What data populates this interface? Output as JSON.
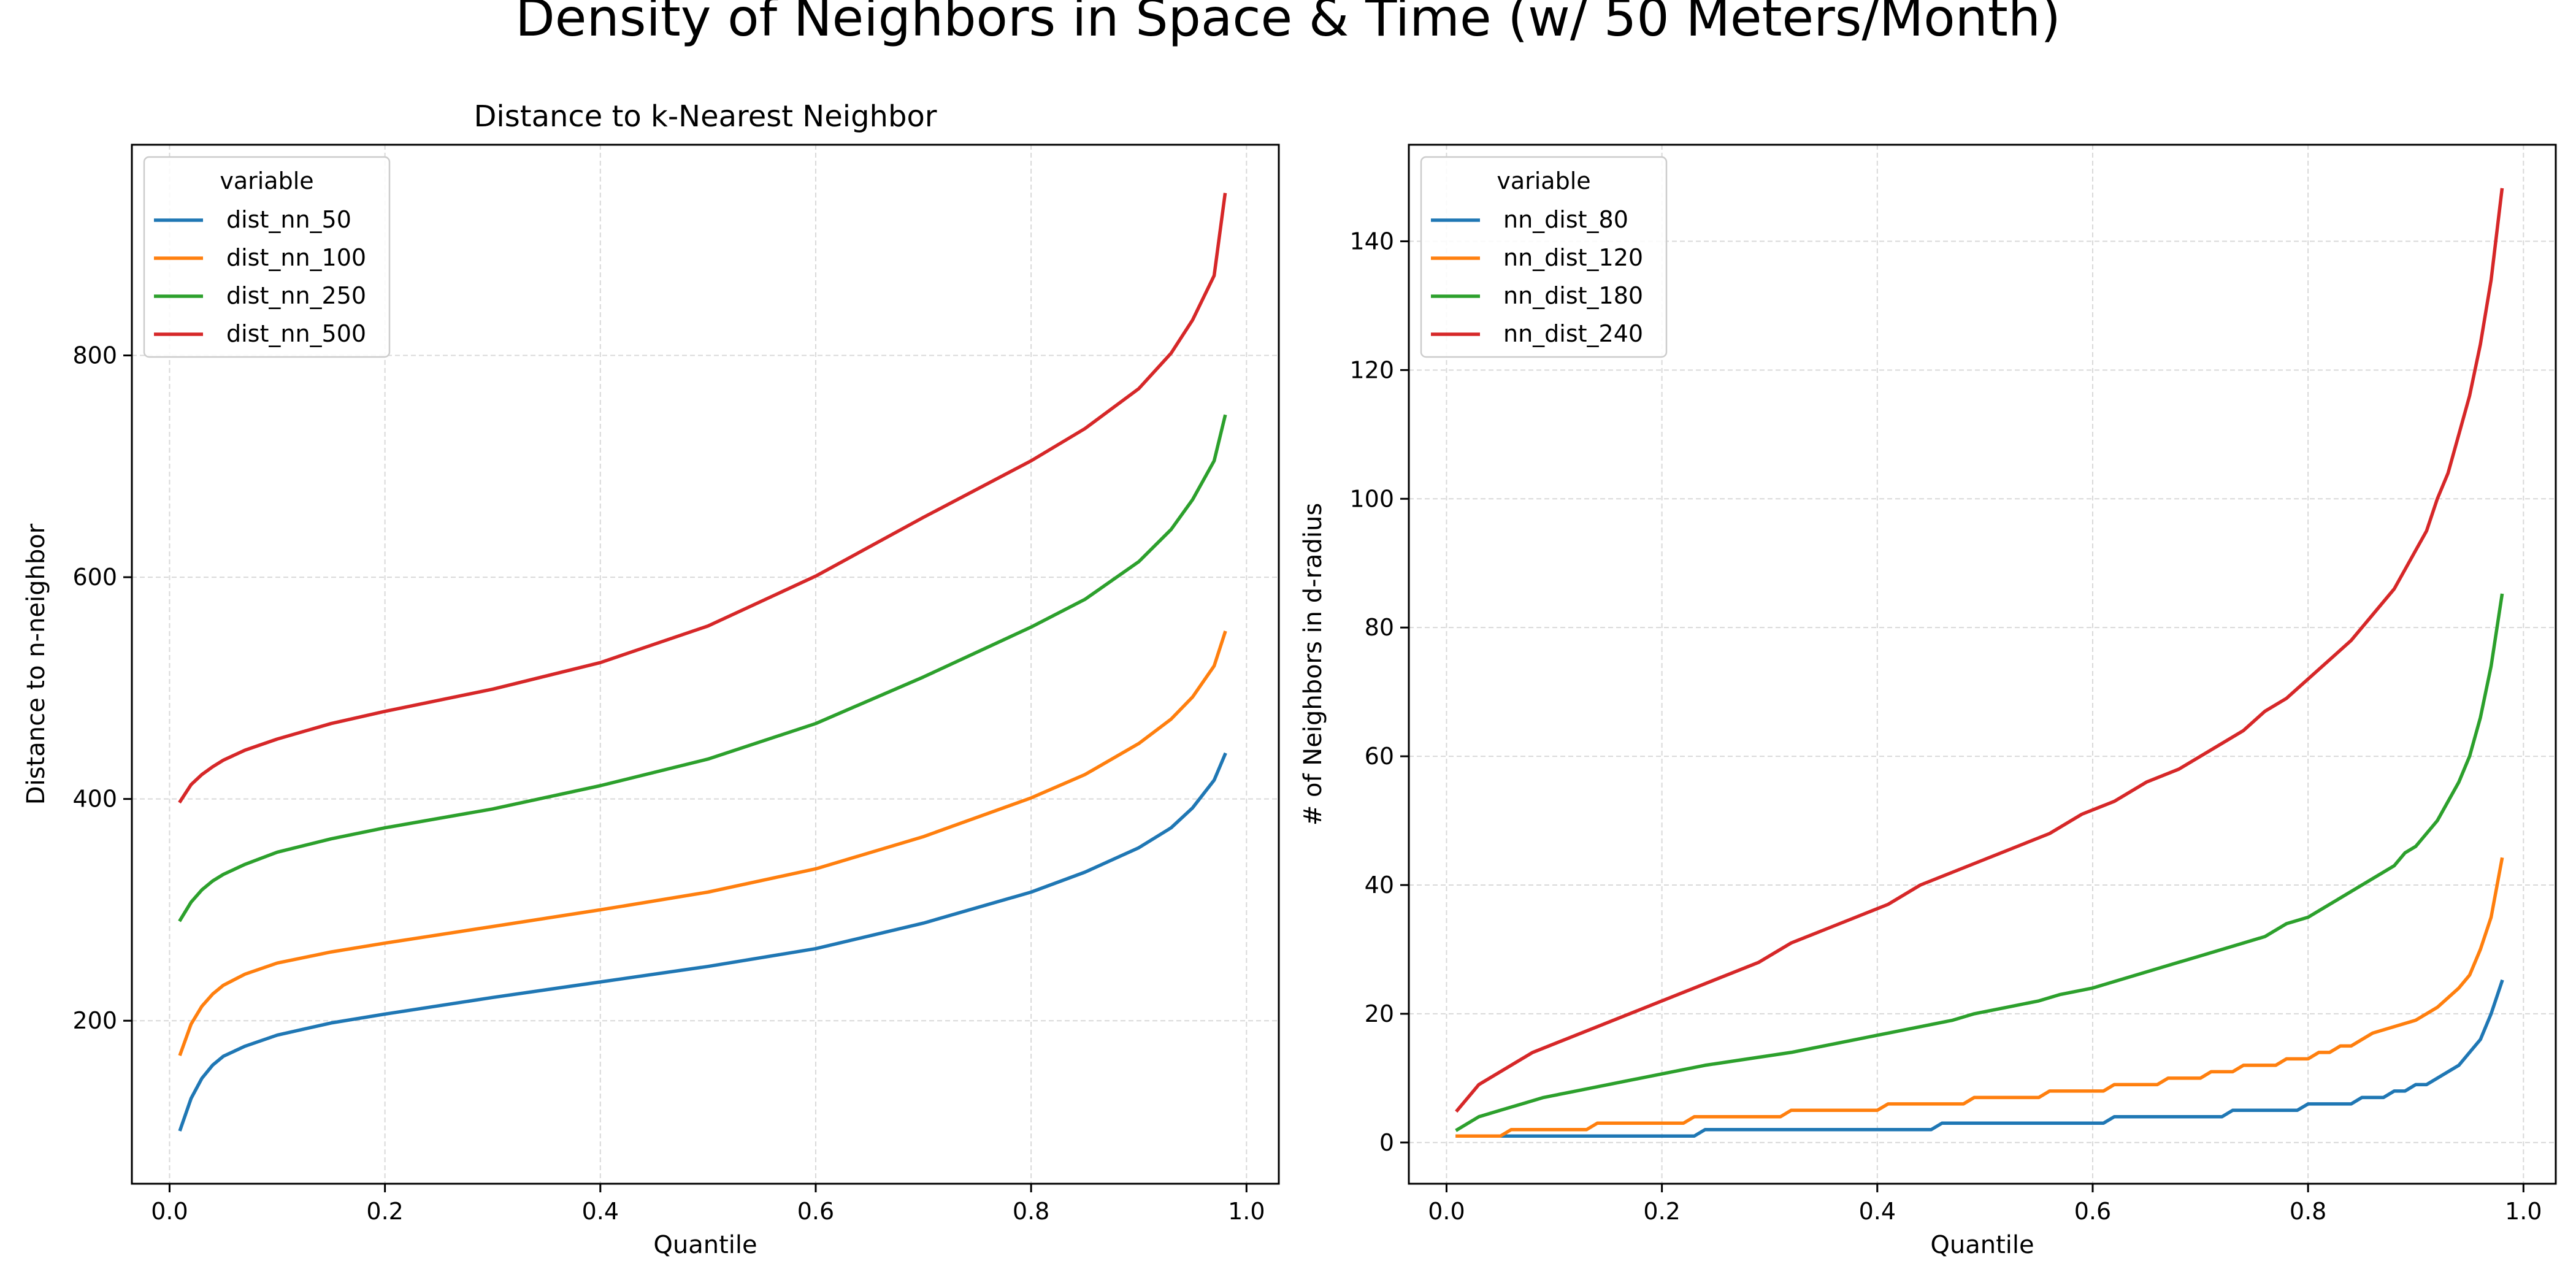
{
  "figure": {
    "title": "Density of Neighbors in Space & Time (w/ 50 Meters/Month)"
  },
  "chart_data": [
    {
      "type": "line",
      "title": "Distance to k-Nearest Neighbor",
      "xlabel": "Quantile",
      "ylabel": "Distance to n-neighbor",
      "xlim": [
        -0.035,
        1.03
      ],
      "ylim": [
        53,
        990
      ],
      "xticks": [
        0.0,
        0.2,
        0.4,
        0.6,
        0.8,
        1.0
      ],
      "xtick_labels": [
        "0.0",
        "0.2",
        "0.4",
        "0.6",
        "0.8",
        "1.0"
      ],
      "yticks": [
        200,
        400,
        600,
        800
      ],
      "ytick_labels": [
        "200",
        "400",
        "600",
        "800"
      ],
      "grid": true,
      "legend": {
        "title": "variable",
        "position": "top-left"
      },
      "series": [
        {
          "name": "dist_nn_50",
          "color": "#1f77b4",
          "points": [
            [
              0.01,
              102
            ],
            [
              0.02,
              130
            ],
            [
              0.03,
              148
            ],
            [
              0.04,
              160
            ],
            [
              0.05,
              168
            ],
            [
              0.07,
              177
            ],
            [
              0.1,
              187
            ],
            [
              0.15,
              198
            ],
            [
              0.2,
              206
            ],
            [
              0.3,
              221
            ],
            [
              0.4,
              235
            ],
            [
              0.5,
              249
            ],
            [
              0.6,
              265
            ],
            [
              0.7,
              288
            ],
            [
              0.8,
              316
            ],
            [
              0.85,
              334
            ],
            [
              0.9,
              356
            ],
            [
              0.93,
              374
            ],
            [
              0.95,
              392
            ],
            [
              0.97,
              417
            ],
            [
              0.98,
              440
            ]
          ]
        },
        {
          "name": "dist_nn_100",
          "color": "#ff7f0e",
          "points": [
            [
              0.01,
              170
            ],
            [
              0.02,
              197
            ],
            [
              0.03,
              213
            ],
            [
              0.04,
              224
            ],
            [
              0.05,
              232
            ],
            [
              0.07,
              242
            ],
            [
              0.1,
              252
            ],
            [
              0.15,
              262
            ],
            [
              0.2,
              270
            ],
            [
              0.3,
              285
            ],
            [
              0.4,
              300
            ],
            [
              0.5,
              316
            ],
            [
              0.6,
              337
            ],
            [
              0.7,
              366
            ],
            [
              0.8,
              401
            ],
            [
              0.85,
              422
            ],
            [
              0.9,
              450
            ],
            [
              0.93,
              472
            ],
            [
              0.95,
              492
            ],
            [
              0.97,
              520
            ],
            [
              0.98,
              550
            ]
          ]
        },
        {
          "name": "dist_nn_250",
          "color": "#2ca02c",
          "points": [
            [
              0.01,
              291
            ],
            [
              0.02,
              307
            ],
            [
              0.03,
              318
            ],
            [
              0.04,
              326
            ],
            [
              0.05,
              332
            ],
            [
              0.07,
              341
            ],
            [
              0.1,
              352
            ],
            [
              0.15,
              364
            ],
            [
              0.2,
              374
            ],
            [
              0.3,
              391
            ],
            [
              0.4,
              412
            ],
            [
              0.5,
              436
            ],
            [
              0.6,
              468
            ],
            [
              0.7,
              510
            ],
            [
              0.8,
              555
            ],
            [
              0.85,
              580
            ],
            [
              0.9,
              614
            ],
            [
              0.93,
              643
            ],
            [
              0.95,
              670
            ],
            [
              0.97,
              705
            ],
            [
              0.98,
              745
            ]
          ]
        },
        {
          "name": "dist_nn_500",
          "color": "#d62728",
          "points": [
            [
              0.01,
              398
            ],
            [
              0.02,
              413
            ],
            [
              0.03,
              422
            ],
            [
              0.04,
              429
            ],
            [
              0.05,
              435
            ],
            [
              0.07,
              444
            ],
            [
              0.1,
              454
            ],
            [
              0.15,
              468
            ],
            [
              0.2,
              479
            ],
            [
              0.3,
              499
            ],
            [
              0.4,
              523
            ],
            [
              0.5,
              556
            ],
            [
              0.6,
              601
            ],
            [
              0.7,
              654
            ],
            [
              0.8,
              705
            ],
            [
              0.85,
              734
            ],
            [
              0.9,
              770
            ],
            [
              0.93,
              802
            ],
            [
              0.95,
              832
            ],
            [
              0.97,
              872
            ],
            [
              0.98,
              945
            ]
          ]
        }
      ]
    },
    {
      "type": "line",
      "title": "",
      "xlabel": "Quantile",
      "ylabel": "# of Neighbors in d-radius",
      "xlim": [
        -0.035,
        1.03
      ],
      "ylim": [
        -6.4,
        155
      ],
      "xticks": [
        0.0,
        0.2,
        0.4,
        0.6,
        0.8,
        1.0
      ],
      "xtick_labels": [
        "0.0",
        "0.2",
        "0.4",
        "0.6",
        "0.8",
        "1.0"
      ],
      "yticks": [
        0,
        20,
        40,
        60,
        80,
        100,
        120,
        140
      ],
      "ytick_labels": [
        "0",
        "20",
        "40",
        "60",
        "80",
        "100",
        "120",
        "140"
      ],
      "grid": true,
      "legend": {
        "title": "variable",
        "position": "top-left"
      },
      "series": [
        {
          "name": "nn_dist_80",
          "color": "#1f77b4",
          "points": [
            [
              0.01,
              1
            ],
            [
              0.23,
              1
            ],
            [
              0.24,
              2
            ],
            [
              0.45,
              2
            ],
            [
              0.46,
              3
            ],
            [
              0.61,
              3
            ],
            [
              0.62,
              4
            ],
            [
              0.72,
              4
            ],
            [
              0.73,
              5
            ],
            [
              0.79,
              5
            ],
            [
              0.8,
              6
            ],
            [
              0.84,
              6
            ],
            [
              0.85,
              7
            ],
            [
              0.87,
              7
            ],
            [
              0.88,
              8
            ],
            [
              0.89,
              8
            ],
            [
              0.9,
              9
            ],
            [
              0.91,
              9
            ],
            [
              0.92,
              10
            ],
            [
              0.93,
              11
            ],
            [
              0.94,
              12
            ],
            [
              0.95,
              14
            ],
            [
              0.96,
              16
            ],
            [
              0.97,
              20
            ],
            [
              0.98,
              25
            ]
          ]
        },
        {
          "name": "nn_dist_120",
          "color": "#ff7f0e",
          "points": [
            [
              0.01,
              1
            ],
            [
              0.05,
              1
            ],
            [
              0.06,
              2
            ],
            [
              0.13,
              2
            ],
            [
              0.14,
              3
            ],
            [
              0.22,
              3
            ],
            [
              0.23,
              4
            ],
            [
              0.31,
              4
            ],
            [
              0.32,
              5
            ],
            [
              0.4,
              5
            ],
            [
              0.41,
              6
            ],
            [
              0.48,
              6
            ],
            [
              0.49,
              7
            ],
            [
              0.55,
              7
            ],
            [
              0.56,
              8
            ],
            [
              0.61,
              8
            ],
            [
              0.62,
              9
            ],
            [
              0.66,
              9
            ],
            [
              0.67,
              10
            ],
            [
              0.7,
              10
            ],
            [
              0.71,
              11
            ],
            [
              0.73,
              11
            ],
            [
              0.74,
              12
            ],
            [
              0.77,
              12
            ],
            [
              0.78,
              13
            ],
            [
              0.8,
              13
            ],
            [
              0.81,
              14
            ],
            [
              0.82,
              14
            ],
            [
              0.83,
              15
            ],
            [
              0.84,
              15
            ],
            [
              0.85,
              16
            ],
            [
              0.86,
              17
            ],
            [
              0.88,
              18
            ],
            [
              0.9,
              19
            ],
            [
              0.92,
              21
            ],
            [
              0.94,
              24
            ],
            [
              0.95,
              26
            ],
            [
              0.96,
              30
            ],
            [
              0.97,
              35
            ],
            [
              0.98,
              44
            ]
          ]
        },
        {
          "name": "nn_dist_180",
          "color": "#2ca02c",
          "points": [
            [
              0.01,
              2
            ],
            [
              0.03,
              4
            ],
            [
              0.05,
              5
            ],
            [
              0.07,
              6
            ],
            [
              0.09,
              7
            ],
            [
              0.12,
              8
            ],
            [
              0.15,
              9
            ],
            [
              0.18,
              10
            ],
            [
              0.21,
              11
            ],
            [
              0.24,
              12
            ],
            [
              0.28,
              13
            ],
            [
              0.32,
              14
            ],
            [
              0.35,
              15
            ],
            [
              0.38,
              16
            ],
            [
              0.41,
              17
            ],
            [
              0.44,
              18
            ],
            [
              0.47,
              19
            ],
            [
              0.49,
              20
            ],
            [
              0.52,
              21
            ],
            [
              0.55,
              22
            ],
            [
              0.57,
              23
            ],
            [
              0.6,
              24
            ],
            [
              0.62,
              25
            ],
            [
              0.64,
              26
            ],
            [
              0.66,
              27
            ],
            [
              0.68,
              28
            ],
            [
              0.7,
              29
            ],
            [
              0.72,
              30
            ],
            [
              0.74,
              31
            ],
            [
              0.76,
              32
            ],
            [
              0.78,
              34
            ],
            [
              0.8,
              35
            ],
            [
              0.82,
              37
            ],
            [
              0.84,
              39
            ],
            [
              0.86,
              41
            ],
            [
              0.88,
              43
            ],
            [
              0.89,
              45
            ],
            [
              0.9,
              46
            ],
            [
              0.91,
              48
            ],
            [
              0.92,
              50
            ],
            [
              0.93,
              53
            ],
            [
              0.94,
              56
            ],
            [
              0.95,
              60
            ],
            [
              0.96,
              66
            ],
            [
              0.97,
              74
            ],
            [
              0.98,
              85
            ]
          ]
        },
        {
          "name": "nn_dist_240",
          "color": "#d62728",
          "points": [
            [
              0.01,
              5
            ],
            [
              0.03,
              9
            ],
            [
              0.05,
              11
            ],
            [
              0.08,
              14
            ],
            [
              0.11,
              16
            ],
            [
              0.14,
              18
            ],
            [
              0.17,
              20
            ],
            [
              0.2,
              22
            ],
            [
              0.23,
              24
            ],
            [
              0.26,
              26
            ],
            [
              0.29,
              28
            ],
            [
              0.32,
              31
            ],
            [
              0.35,
              33
            ],
            [
              0.38,
              35
            ],
            [
              0.41,
              37
            ],
            [
              0.44,
              40
            ],
            [
              0.47,
              42
            ],
            [
              0.5,
              44
            ],
            [
              0.53,
              46
            ],
            [
              0.56,
              48
            ],
            [
              0.59,
              51
            ],
            [
              0.62,
              53
            ],
            [
              0.65,
              56
            ],
            [
              0.68,
              58
            ],
            [
              0.71,
              61
            ],
            [
              0.74,
              64
            ],
            [
              0.76,
              67
            ],
            [
              0.78,
              69
            ],
            [
              0.8,
              72
            ],
            [
              0.82,
              75
            ],
            [
              0.84,
              78
            ],
            [
              0.86,
              82
            ],
            [
              0.88,
              86
            ],
            [
              0.9,
              92
            ],
            [
              0.91,
              95
            ],
            [
              0.92,
              100
            ],
            [
              0.93,
              104
            ],
            [
              0.94,
              110
            ],
            [
              0.95,
              116
            ],
            [
              0.96,
              124
            ],
            [
              0.97,
              134
            ],
            [
              0.98,
              148
            ]
          ]
        }
      ]
    }
  ]
}
